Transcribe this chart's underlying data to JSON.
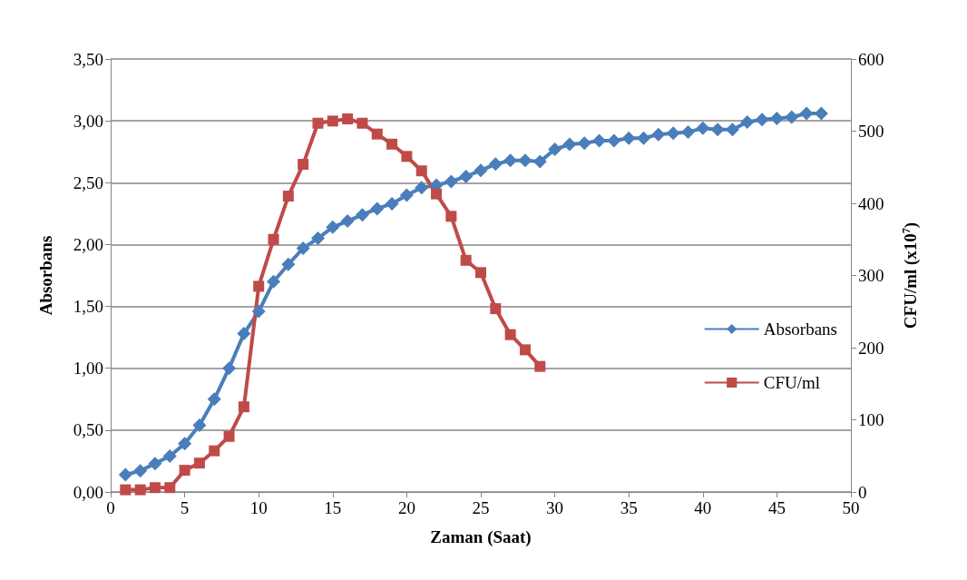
{
  "chart_data": {
    "type": "line",
    "xlabel": "Zaman (Saat)",
    "ylabel": "Absorbans",
    "y2label": "CFU/ml (x10$^{7}$)",
    "xlim": [
      0,
      50
    ],
    "xticks": [
      0,
      5,
      10,
      15,
      20,
      25,
      30,
      35,
      40,
      45,
      50
    ],
    "ylim": [
      0,
      3.5
    ],
    "yticks": [
      {
        "value": 0,
        "label": "0,00"
      },
      {
        "value": 0.5,
        "label": "0,50"
      },
      {
        "value": 1,
        "label": "1,00"
      },
      {
        "value": 1.5,
        "label": "1,50"
      },
      {
        "value": 2,
        "label": "2,00"
      },
      {
        "value": 2.5,
        "label": "2,50"
      },
      {
        "value": 3,
        "label": "3,00"
      },
      {
        "value": 3.5,
        "label": "3,50"
      }
    ],
    "y2lim": [
      0,
      600
    ],
    "y2ticks": [
      0,
      100,
      200,
      300,
      400,
      500,
      600
    ],
    "grid": "y",
    "legend": "right",
    "series": [
      {
        "name": "Absorbans",
        "color": "#4a7ebb",
        "marker": "diamond",
        "x": [
          1,
          2,
          3,
          4,
          5,
          6,
          7,
          8,
          9,
          10,
          11,
          12,
          13,
          14,
          15,
          16,
          17,
          18,
          19,
          20,
          21,
          22,
          23,
          24,
          25,
          26,
          27,
          28,
          29,
          30,
          31,
          32,
          33,
          34,
          35,
          36,
          37,
          38,
          39,
          40,
          41,
          42,
          43,
          44,
          45,
          46,
          47,
          48
        ],
        "values": [
          0.14,
          0.17,
          0.23,
          0.29,
          0.39,
          0.54,
          0.75,
          1.0,
          1.28,
          1.46,
          1.7,
          1.84,
          1.97,
          2.05,
          2.14,
          2.19,
          2.24,
          2.29,
          2.33,
          2.4,
          2.46,
          2.48,
          2.51,
          2.55,
          2.6,
          2.65,
          2.68,
          2.68,
          2.67,
          2.77,
          2.81,
          2.82,
          2.84,
          2.84,
          2.86,
          2.86,
          2.89,
          2.9,
          2.91,
          2.94,
          2.93,
          2.93,
          2.99,
          3.01,
          3.02,
          3.03,
          3.06,
          3.06
        ]
      },
      {
        "name": "CFU/ml",
        "color": "#be4b48",
        "marker": "square",
        "axis": "y2",
        "x": [
          1,
          2,
          3,
          4,
          5,
          6,
          7,
          8,
          9,
          10,
          11,
          12,
          13,
          14,
          15,
          16,
          17,
          18,
          19,
          20,
          21,
          22,
          23,
          24,
          25,
          26,
          27,
          28,
          29
        ],
        "values": [
          3,
          3,
          6,
          6,
          30,
          40,
          57,
          77,
          118,
          285,
          350,
          410,
          454,
          511,
          514,
          517,
          511,
          496,
          482,
          465,
          445,
          413,
          382,
          321,
          304,
          254,
          218,
          197,
          174
        ]
      }
    ]
  }
}
